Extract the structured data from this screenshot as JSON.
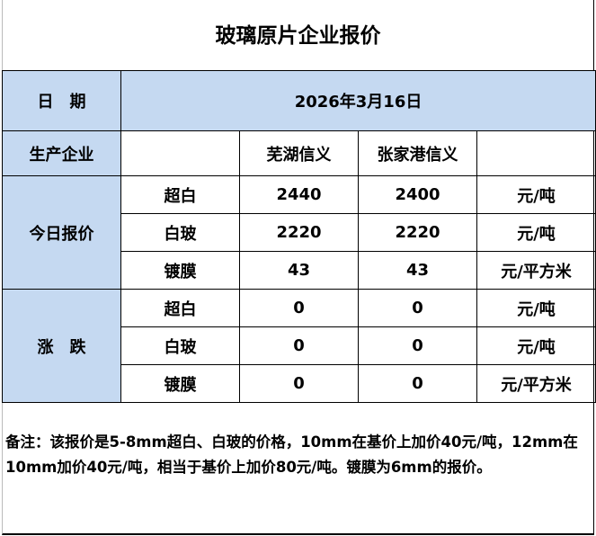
{
  "title": "玻璃原片企业报价",
  "date_label": "日　期",
  "date_value": "2026年3月16日",
  "company_label": "生产企业",
  "companies": [
    "芜湖信义",
    "张家港信义"
  ],
  "today_label": "今日报价",
  "change_label": "涨　跌",
  "today_rows": [
    {
      "product": "超白",
      "values": [
        "2440",
        "2400"
      ],
      "unit": "元/吨"
    },
    {
      "product": "白玻",
      "values": [
        "2220",
        "2220"
      ],
      "unit": "元/吨"
    },
    {
      "product": "镀膜",
      "values": [
        "43",
        "43"
      ],
      "unit": "元/平方米"
    }
  ],
  "change_rows": [
    {
      "product": "超白",
      "values": [
        "0",
        "0"
      ],
      "unit": "元/吨"
    },
    {
      "product": "白玻",
      "values": [
        "0",
        "0"
      ],
      "unit": "元/吨"
    },
    {
      "product": "镀膜",
      "values": [
        "0",
        "0"
      ],
      "unit": "元/平方米"
    }
  ],
  "note": "备注：该报价是5-8mm超白、白玻的价格，10mm在基价上加价40元/吨，12mm在10mm加价40元/吨，相当于基价上加价80元/吨。镀膜为6mm的报价。",
  "colors": {
    "header_fill": "#c5d9f1"
  }
}
